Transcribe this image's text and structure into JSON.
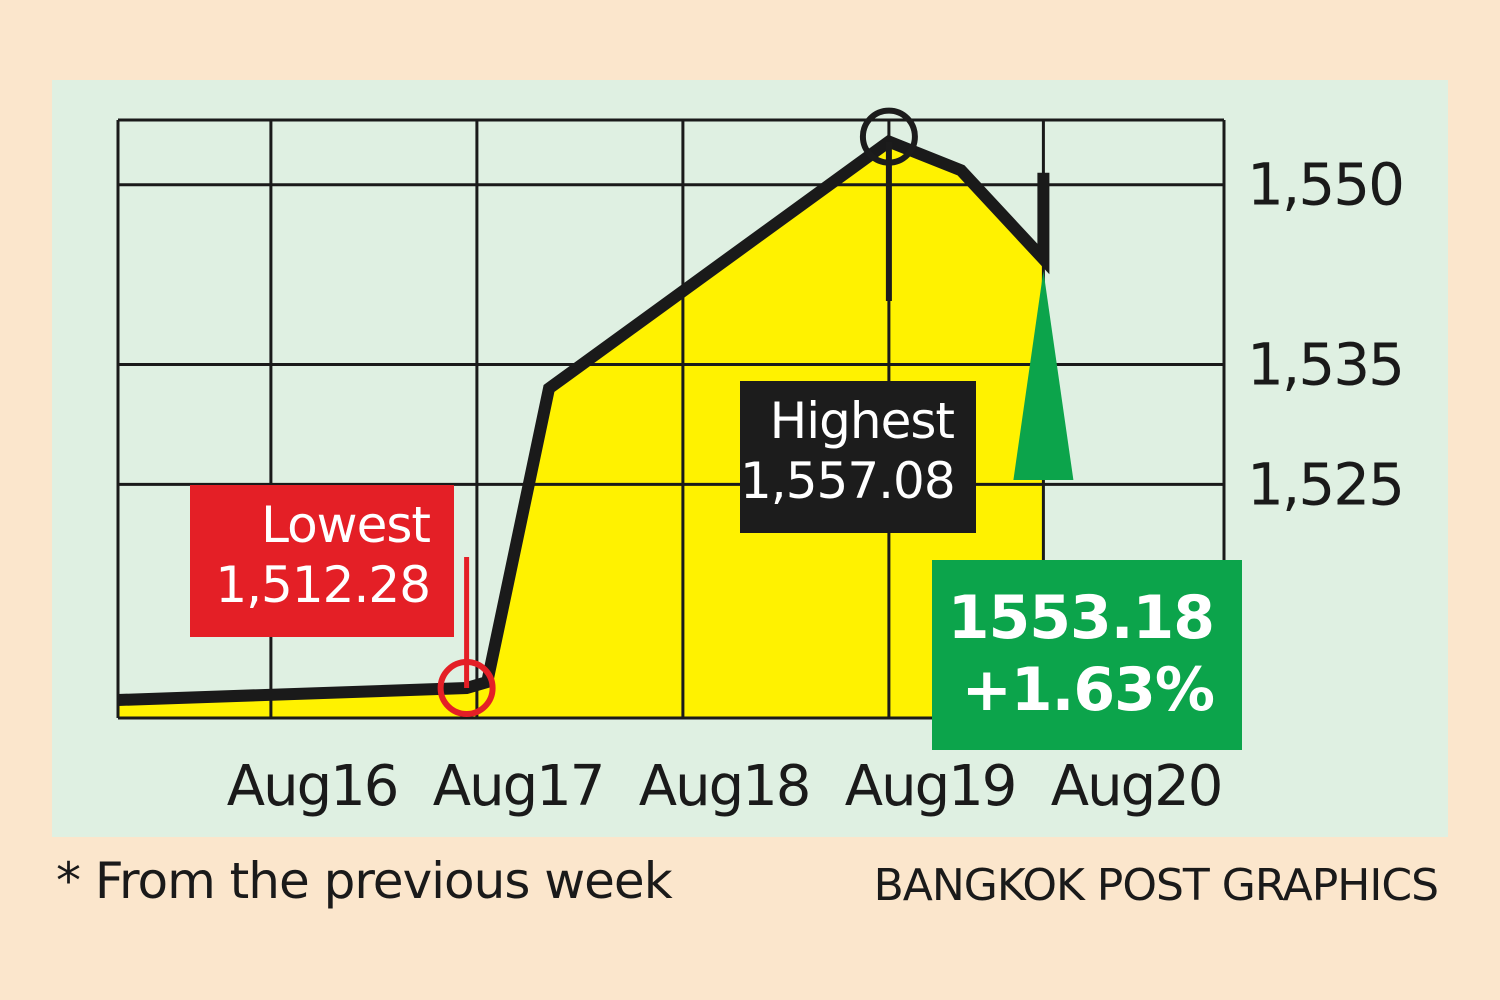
{
  "chart_data": {
    "type": "area",
    "x": [
      "Aug16",
      "Aug17",
      "Aug18",
      "Aug19",
      "Aug20"
    ],
    "points": [
      {
        "day": 0.0,
        "value": 1507.0
      },
      {
        "day": 0.6,
        "value": 1508.0
      },
      {
        "day": 0.7,
        "value": 1508.5
      },
      {
        "day": 1.0,
        "value": 1533.0
      },
      {
        "day": 2.65,
        "value": 1553.6
      },
      {
        "day": 3.0,
        "value": 1551.2
      },
      {
        "day": 3.4,
        "value": 1543.8
      },
      {
        "day": 3.4,
        "value": 1551.0
      }
    ],
    "y_ticks": [
      "1,550",
      "1,535",
      "1,525"
    ],
    "y_tick_values": [
      1550,
      1535,
      1525
    ],
    "ylim": [
      1505.5,
      1555.4
    ],
    "grid": true,
    "colors": {
      "fill": "#fff200",
      "line": "#1a1a1a",
      "grid": "#1a1a1a"
    },
    "annotations": {
      "low": {
        "label": "Lowest",
        "value": "1,512.28",
        "color": "#e41f26"
      },
      "high": {
        "label": "Highest",
        "value": "1,557.08",
        "color": "#1c1c1c"
      },
      "last": {
        "value": "1553.18",
        "change": "+1.63%",
        "color": "#0ca44b"
      }
    }
  },
  "footnote": "* From the previous week",
  "credit": "BANGKOK POST GRAPHICS"
}
